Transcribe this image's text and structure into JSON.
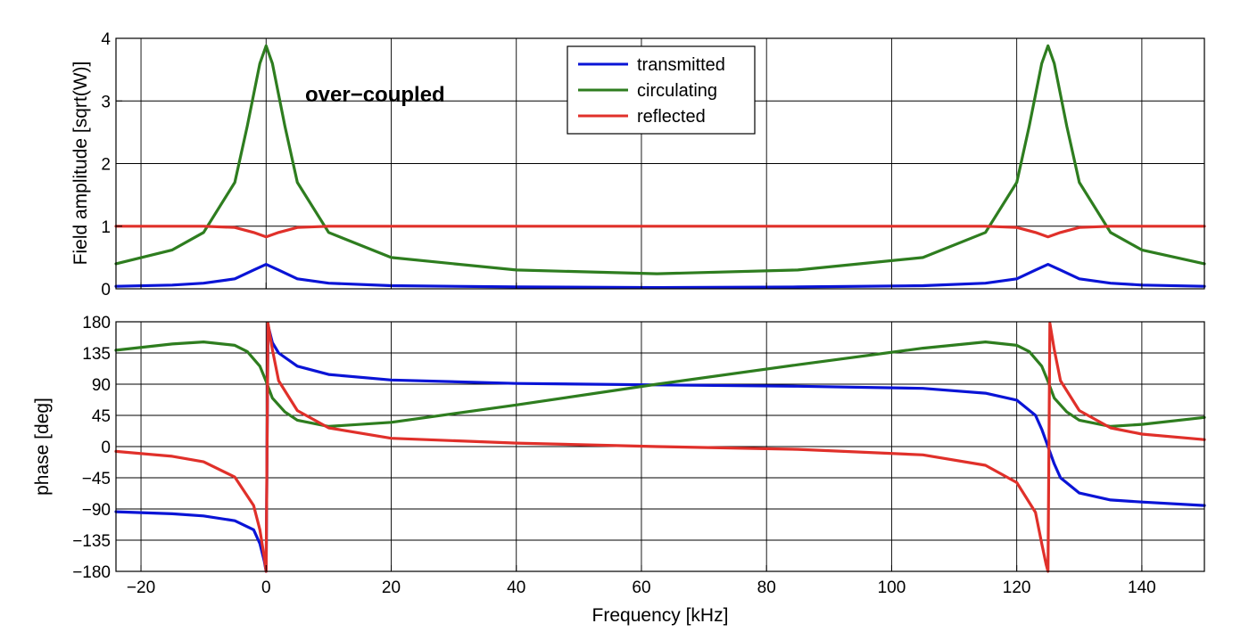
{
  "chart_data": [
    {
      "type": "line",
      "id": "amplitude",
      "xlabel": "",
      "ylabel": "Field amplitude [sqrt(W)]",
      "xlim": [
        -24,
        150
      ],
      "ylim": [
        0,
        4
      ],
      "xticks": [
        -20,
        0,
        20,
        40,
        60,
        80,
        100,
        120,
        140
      ],
      "yticks": [
        0,
        1,
        2,
        3,
        4
      ],
      "grid": true,
      "annotation": "over−coupled",
      "legend": {
        "position": "top-center",
        "entries": [
          {
            "name": "transmitted",
            "color": "#0a14d6"
          },
          {
            "name": "circulating",
            "color": "#2e7d1f"
          },
          {
            "name": "reflected",
            "color": "#e0302a"
          }
        ]
      },
      "series": [
        {
          "name": "transmitted",
          "color": "#0a14d6",
          "x": [
            -24,
            -15,
            -10,
            -5,
            -2,
            0,
            2,
            5,
            10,
            20,
            40,
            62.5,
            85,
            105,
            115,
            120,
            123,
            125,
            127,
            130,
            135,
            140,
            150
          ],
          "y": [
            0.04,
            0.06,
            0.09,
            0.16,
            0.3,
            0.39,
            0.3,
            0.16,
            0.09,
            0.05,
            0.03,
            0.02,
            0.03,
            0.05,
            0.09,
            0.16,
            0.3,
            0.39,
            0.3,
            0.16,
            0.09,
            0.06,
            0.04
          ]
        },
        {
          "name": "circulating",
          "color": "#2e7d1f",
          "x": [
            -24,
            -15,
            -10,
            -5,
            -3,
            -1,
            0,
            1,
            3,
            5,
            10,
            20,
            40,
            62.5,
            85,
            105,
            115,
            120,
            122,
            124,
            125,
            126,
            128,
            130,
            135,
            140,
            150
          ],
          "y": [
            0.4,
            0.62,
            0.9,
            1.7,
            2.6,
            3.6,
            3.88,
            3.6,
            2.6,
            1.7,
            0.9,
            0.5,
            0.3,
            0.24,
            0.3,
            0.5,
            0.9,
            1.7,
            2.6,
            3.6,
            3.88,
            3.6,
            2.6,
            1.7,
            0.9,
            0.62,
            0.4
          ]
        },
        {
          "name": "reflected",
          "color": "#e0302a",
          "x": [
            -24,
            -10,
            -5,
            -2,
            0,
            2,
            5,
            10,
            62.5,
            115,
            120,
            123,
            125,
            127,
            130,
            135,
            150
          ],
          "y": [
            1.0,
            1.0,
            0.98,
            0.9,
            0.83,
            0.9,
            0.98,
            1.0,
            1.0,
            1.0,
            0.98,
            0.9,
            0.83,
            0.9,
            0.98,
            1.0,
            1.0
          ]
        }
      ]
    },
    {
      "type": "line",
      "id": "phase",
      "xlabel": "Frequency [kHz]",
      "ylabel": "phase [deg]",
      "xlim": [
        -24,
        150
      ],
      "ylim": [
        -180,
        180
      ],
      "xticks": [
        -20,
        0,
        20,
        40,
        60,
        80,
        100,
        120,
        140
      ],
      "yticks": [
        -180,
        -135,
        -90,
        -45,
        0,
        45,
        90,
        135,
        180
      ],
      "grid": true,
      "series": [
        {
          "name": "transmitted",
          "color": "#0a14d6",
          "x": [
            -24,
            -15,
            -10,
            -5,
            -2,
            -1,
            -0.3,
            0,
            0.3,
            1,
            2,
            5,
            10,
            20,
            40,
            62.5,
            85,
            105,
            115,
            120,
            123,
            124,
            125,
            126,
            127,
            130,
            135,
            140,
            150
          ],
          "y": [
            -94,
            -97,
            -100,
            -107,
            -120,
            -140,
            -165,
            -180,
            175,
            150,
            135,
            116,
            104,
            96,
            91,
            89,
            87,
            84,
            77,
            67,
            45,
            25,
            0,
            -25,
            -45,
            -67,
            -77,
            -80,
            -85
          ]
        },
        {
          "name": "circulating",
          "color": "#2e7d1f",
          "x": [
            -24,
            -15,
            -10,
            -5,
            -3,
            -1,
            0,
            1,
            3,
            5,
            10,
            20,
            40,
            62.5,
            85,
            105,
            115,
            120,
            122,
            124,
            125,
            126,
            128,
            130,
            135,
            140,
            150
          ],
          "y": [
            139,
            148,
            151,
            146,
            137,
            116,
            94,
            70,
            50,
            38,
            29,
            35,
            60,
            90,
            118,
            142,
            151,
            146,
            137,
            116,
            94,
            70,
            50,
            38,
            29,
            32,
            42
          ]
        },
        {
          "name": "reflected",
          "color": "#e0302a",
          "x": [
            -24,
            -15,
            -10,
            -5,
            -2,
            -1,
            -0.3,
            0,
            0.3,
            1,
            2,
            5,
            10,
            20,
            40,
            62.5,
            85,
            105,
            115,
            120,
            123,
            124,
            124.7,
            125,
            125.3,
            126,
            127,
            130,
            135,
            140,
            150
          ],
          "y": [
            -7,
            -14,
            -22,
            -44,
            -85,
            -120,
            -160,
            -180,
            178,
            140,
            95,
            52,
            27,
            12,
            5,
            0,
            -4,
            -12,
            -27,
            -52,
            -95,
            -140,
            -170,
            -180,
            178,
            140,
            95,
            52,
            27,
            18,
            10
          ]
        }
      ]
    }
  ]
}
